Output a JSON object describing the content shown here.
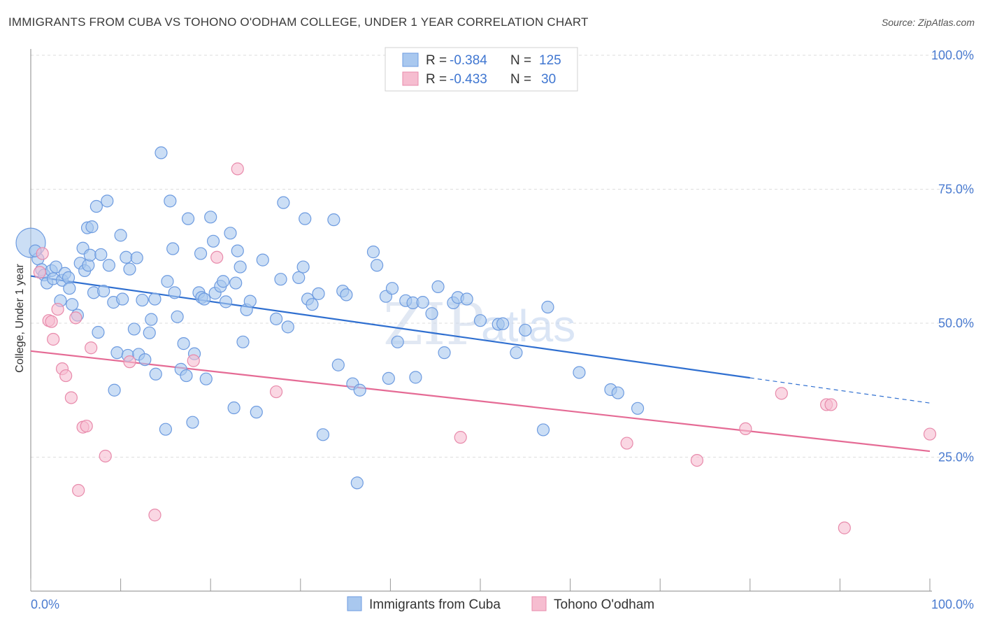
{
  "title": "IMMIGRANTS FROM CUBA VS TOHONO O'ODHAM COLLEGE, UNDER 1 YEAR CORRELATION CHART",
  "source": "Source: ZipAtlas.com",
  "watermark": {
    "zip": "ZIP",
    "atlas": "atlas"
  },
  "colors": {
    "blue_fill": "#a9c8ef",
    "blue_stroke": "#6d9be0",
    "blue_line": "#2f6fd0",
    "pink_fill": "#f6bdd0",
    "pink_stroke": "#e88aab",
    "pink_line": "#e56b95",
    "tick_label": "#4a7bd0",
    "grid": "#dddddd"
  },
  "legend_top": {
    "rows": [
      {
        "r_label": "R =",
        "r_value": "-0.384",
        "n_label": "N =",
        "n_value": "125",
        "series": "blue"
      },
      {
        "r_label": "R =",
        "r_value": "-0.433",
        "n_label": "N =",
        "n_value": "30",
        "series": "pink"
      }
    ]
  },
  "legend_bottom": [
    "Immigrants from Cuba",
    "Tohono O'odham"
  ],
  "chart_data": {
    "type": "scatter",
    "ylabel": "College, Under 1 year",
    "xlim": [
      0,
      100
    ],
    "ylim": [
      0,
      100
    ],
    "x_tick_labels": {
      "left": "0.0%",
      "right": "100.0%"
    },
    "y_ticks": [
      {
        "value": 25,
        "label": "25.0%"
      },
      {
        "value": 50,
        "label": "50.0%"
      },
      {
        "value": 75,
        "label": "75.0%"
      },
      {
        "value": 100,
        "label": "100.0%"
      }
    ],
    "grid": true,
    "series": [
      {
        "name": "Immigrants from Cuba",
        "color": "blue",
        "trend": {
          "x0": 0,
          "y0": 58.8,
          "x1": 80,
          "y1": 39.8,
          "dash_to": [
            100,
            35.1
          ]
        },
        "points": [
          [
            0,
            65.0,
            3
          ],
          [
            0.8,
            62.0,
            1
          ],
          [
            1.2,
            60.0,
            1
          ],
          [
            1.5,
            59.0,
            1
          ],
          [
            1.8,
            57.5,
            1
          ],
          [
            2.3,
            59.8,
            1
          ],
          [
            2.5,
            58.3,
            1
          ],
          [
            2.8,
            60.5,
            1
          ],
          [
            3.3,
            54.2,
            1
          ],
          [
            3.5,
            58.0,
            1
          ],
          [
            3.8,
            59.3,
            1
          ],
          [
            4.2,
            58.5,
            1
          ],
          [
            4.3,
            56.5,
            1
          ],
          [
            4.6,
            53.5,
            1
          ],
          [
            5.2,
            51.5,
            1
          ],
          [
            5.5,
            61.2,
            1
          ],
          [
            5.8,
            64.0,
            1
          ],
          [
            6.0,
            59.8,
            1
          ],
          [
            6.3,
            67.8,
            1
          ],
          [
            6.4,
            60.8,
            1
          ],
          [
            6.6,
            62.7,
            1
          ],
          [
            6.8,
            68.0,
            1
          ],
          [
            7.0,
            55.7,
            1
          ],
          [
            7.3,
            71.8,
            1
          ],
          [
            7.5,
            48.3,
            1
          ],
          [
            7.8,
            62.8,
            1
          ],
          [
            8.1,
            56.0,
            1
          ],
          [
            8.5,
            72.8,
            1
          ],
          [
            8.7,
            60.8,
            1
          ],
          [
            9.2,
            53.9,
            1
          ],
          [
            9.3,
            37.5,
            1
          ],
          [
            9.6,
            44.5,
            1
          ],
          [
            10.0,
            66.4,
            1
          ],
          [
            10.2,
            54.5,
            1
          ],
          [
            10.6,
            62.3,
            1
          ],
          [
            10.8,
            44.0,
            1
          ],
          [
            11.0,
            60.1,
            1
          ],
          [
            11.5,
            48.9,
            1
          ],
          [
            11.8,
            62.2,
            1
          ],
          [
            12.0,
            44.2,
            1
          ],
          [
            12.4,
            54.3,
            1
          ],
          [
            12.7,
            43.2,
            1
          ],
          [
            13.2,
            48.2,
            1
          ],
          [
            13.4,
            50.7,
            1
          ],
          [
            13.8,
            54.5,
            1
          ],
          [
            13.9,
            40.5,
            1
          ],
          [
            14.5,
            81.8,
            1
          ],
          [
            15.0,
            30.2,
            1
          ],
          [
            15.2,
            57.8,
            1
          ],
          [
            15.5,
            72.8,
            1
          ],
          [
            15.8,
            63.9,
            1
          ],
          [
            16.0,
            55.7,
            1
          ],
          [
            16.3,
            51.2,
            1
          ],
          [
            16.7,
            41.4,
            1
          ],
          [
            17.0,
            46.2,
            1
          ],
          [
            17.3,
            40.2,
            1
          ],
          [
            17.5,
            69.5,
            1
          ],
          [
            18.0,
            31.5,
            1
          ],
          [
            18.2,
            44.3,
            1
          ],
          [
            18.7,
            55.7,
            1
          ],
          [
            18.9,
            63.0,
            1
          ],
          [
            19.0,
            54.8,
            1
          ],
          [
            19.3,
            54.5,
            1
          ],
          [
            19.5,
            39.6,
            1
          ],
          [
            20.0,
            69.8,
            1
          ],
          [
            20.3,
            65.3,
            1
          ],
          [
            20.5,
            55.6,
            1
          ],
          [
            21.1,
            56.9,
            1
          ],
          [
            21.4,
            57.8,
            1
          ],
          [
            21.7,
            54.0,
            1
          ],
          [
            22.2,
            66.8,
            1
          ],
          [
            22.6,
            34.2,
            1
          ],
          [
            22.8,
            57.5,
            1
          ],
          [
            23.0,
            63.5,
            1
          ],
          [
            23.3,
            60.5,
            1
          ],
          [
            23.6,
            46.5,
            1
          ],
          [
            24.0,
            52.5,
            1
          ],
          [
            24.4,
            54.1,
            1
          ],
          [
            25.1,
            33.4,
            1
          ],
          [
            25.8,
            61.8,
            1
          ],
          [
            27.3,
            50.8,
            1
          ],
          [
            27.8,
            58.2,
            1
          ],
          [
            28.1,
            72.5,
            1
          ],
          [
            28.6,
            49.3,
            1
          ],
          [
            29.8,
            58.5,
            1
          ],
          [
            30.3,
            60.5,
            1
          ],
          [
            30.5,
            69.5,
            1
          ],
          [
            30.8,
            54.5,
            1
          ],
          [
            31.3,
            53.5,
            1
          ],
          [
            32.0,
            55.5,
            1
          ],
          [
            32.5,
            29.2,
            1
          ],
          [
            33.7,
            69.3,
            1
          ],
          [
            34.2,
            42.2,
            1
          ],
          [
            34.7,
            56.0,
            1
          ],
          [
            35.1,
            55.3,
            1
          ],
          [
            35.8,
            38.7,
            1
          ],
          [
            36.3,
            20.2,
            1
          ],
          [
            36.6,
            37.5,
            1
          ],
          [
            38.1,
            63.3,
            1
          ],
          [
            38.5,
            60.8,
            1
          ],
          [
            39.5,
            55.0,
            1
          ],
          [
            39.8,
            39.7,
            1
          ],
          [
            40.2,
            56.5,
            1
          ],
          [
            40.8,
            46.5,
            1
          ],
          [
            41.7,
            54.2,
            1
          ],
          [
            42.5,
            53.8,
            1
          ],
          [
            42.8,
            39.9,
            1
          ],
          [
            43.6,
            53.9,
            1
          ],
          [
            44.6,
            51.8,
            1
          ],
          [
            45.3,
            56.8,
            1
          ],
          [
            46.0,
            44.5,
            1
          ],
          [
            47.0,
            53.8,
            1
          ],
          [
            47.5,
            54.8,
            1
          ],
          [
            48.5,
            54.5,
            1
          ],
          [
            50.0,
            50.5,
            1
          ],
          [
            52.0,
            49.8,
            1
          ],
          [
            52.5,
            49.9,
            1
          ],
          [
            54.0,
            44.5,
            1
          ],
          [
            55.0,
            48.7,
            1
          ],
          [
            57.0,
            30.1,
            1
          ],
          [
            57.5,
            53.0,
            1
          ],
          [
            61.0,
            40.8,
            1
          ],
          [
            64.5,
            37.6,
            1
          ],
          [
            65.3,
            37.0,
            1
          ],
          [
            67.5,
            34.1,
            1
          ],
          [
            0.5,
            63.5,
            1
          ]
        ]
      },
      {
        "name": "Tohono O'odham",
        "color": "pink",
        "trend": {
          "x0": 0,
          "y0": 44.8,
          "x1": 100,
          "y1": 26.1
        },
        "points": [
          [
            1.0,
            59.5,
            1
          ],
          [
            1.3,
            63.0,
            1
          ],
          [
            2.0,
            50.5,
            1
          ],
          [
            2.3,
            50.3,
            1
          ],
          [
            2.5,
            47.0,
            1
          ],
          [
            3.0,
            52.6,
            1
          ],
          [
            3.5,
            41.5,
            1
          ],
          [
            3.9,
            40.2,
            1
          ],
          [
            4.5,
            36.1,
            1
          ],
          [
            5.0,
            51.0,
            1
          ],
          [
            5.3,
            18.8,
            1
          ],
          [
            5.8,
            30.6,
            1
          ],
          [
            6.2,
            30.8,
            1
          ],
          [
            6.7,
            45.4,
            1
          ],
          [
            8.3,
            25.2,
            1
          ],
          [
            11.0,
            42.8,
            1
          ],
          [
            13.8,
            14.2,
            1
          ],
          [
            18.1,
            43.0,
            1
          ],
          [
            20.7,
            62.3,
            1
          ],
          [
            23.0,
            78.8,
            1
          ],
          [
            27.3,
            37.2,
            1
          ],
          [
            47.8,
            28.7,
            1
          ],
          [
            66.3,
            27.6,
            1
          ],
          [
            74.1,
            24.4,
            1
          ],
          [
            79.5,
            30.3,
            1
          ],
          [
            83.5,
            36.9,
            1
          ],
          [
            88.5,
            34.8,
            1
          ],
          [
            89.0,
            34.8,
            1
          ],
          [
            90.5,
            11.8,
            1
          ],
          [
            100.0,
            29.3,
            1
          ]
        ]
      }
    ]
  }
}
